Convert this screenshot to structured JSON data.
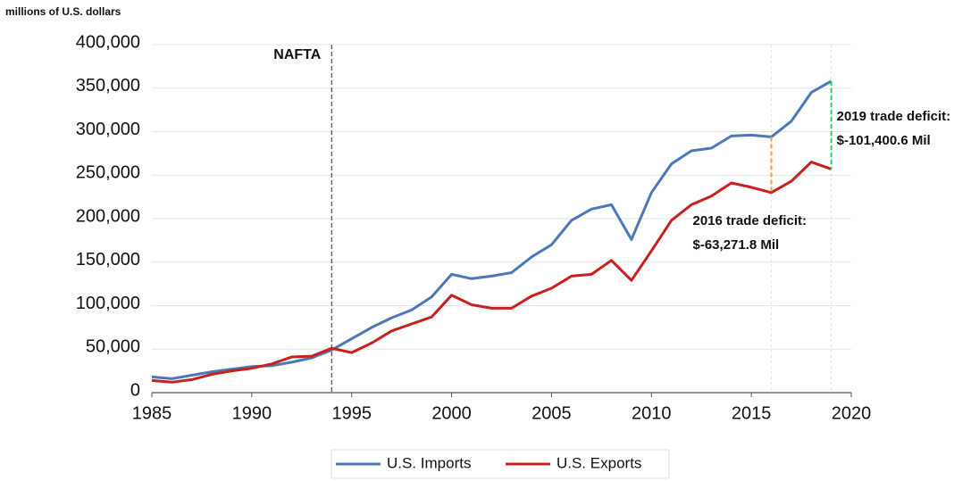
{
  "chart_data": {
    "type": "line",
    "y_label": "millions of U.S. dollars",
    "x": [
      1985,
      1986,
      1987,
      1988,
      1989,
      1990,
      1991,
      1992,
      1993,
      1994,
      1995,
      1996,
      1997,
      1998,
      1999,
      2000,
      2001,
      2002,
      2003,
      2004,
      2005,
      2006,
      2007,
      2008,
      2009,
      2010,
      2011,
      2012,
      2013,
      2014,
      2015,
      2016,
      2017,
      2018,
      2019
    ],
    "series": [
      {
        "name": "U.S. Imports",
        "color": "#4a78b8",
        "values": [
          18000,
          16000,
          20000,
          24000,
          27000,
          30000,
          31000,
          35000,
          40000,
          49000,
          62000,
          75000,
          86000,
          95000,
          110000,
          136000,
          131000,
          134000,
          138000,
          156000,
          170000,
          198000,
          211000,
          216000,
          176000,
          230000,
          263000,
          278000,
          281000,
          295000,
          296000,
          294000,
          312000,
          345000,
          358000
        ]
      },
      {
        "name": "U.S. Exports",
        "color": "#c8201e",
        "values": [
          14000,
          12000,
          15000,
          21000,
          25000,
          28000,
          33000,
          41000,
          42000,
          51000,
          46000,
          57000,
          71000,
          79000,
          87000,
          112000,
          101000,
          97000,
          97000,
          111000,
          120000,
          134000,
          136000,
          152000,
          129000,
          163000,
          198000,
          216000,
          226000,
          241000,
          236000,
          230000,
          243000,
          265000,
          257000
        ]
      }
    ],
    "xlim": [
      1985,
      2020
    ],
    "xticks": [
      1985,
      1990,
      1995,
      2000,
      2005,
      2010,
      2015,
      2020
    ],
    "ylim": [
      0,
      400000
    ],
    "yticks": [
      0,
      {
        "value": 50000,
        "label": "50,000"
      },
      {
        "value": 100000,
        "label": "100,000"
      },
      {
        "value": 150000,
        "label": "150,000"
      },
      {
        "value": 200000,
        "label": "200,000"
      },
      {
        "value": 250000,
        "label": "250,000"
      },
      {
        "value": 300000,
        "label": "300,000"
      },
      {
        "value": 350000,
        "label": "350,000"
      },
      {
        "value": 400000,
        "label": "400,000"
      }
    ],
    "grid": true,
    "legend": "bottom",
    "markers": [
      {
        "text": "NAFTA",
        "x": 1994,
        "color": "#555555"
      }
    ],
    "annotations": [
      {
        "lines": [
          "2016 trade deficit:",
          "$-63,271.8 Mil"
        ],
        "x": 2016,
        "color": "#f0a030"
      },
      {
        "lines": [
          "2019 trade deficit:",
          "$-101,400.6 Mil"
        ],
        "x": 2019,
        "color": "#2ecc71"
      }
    ]
  }
}
